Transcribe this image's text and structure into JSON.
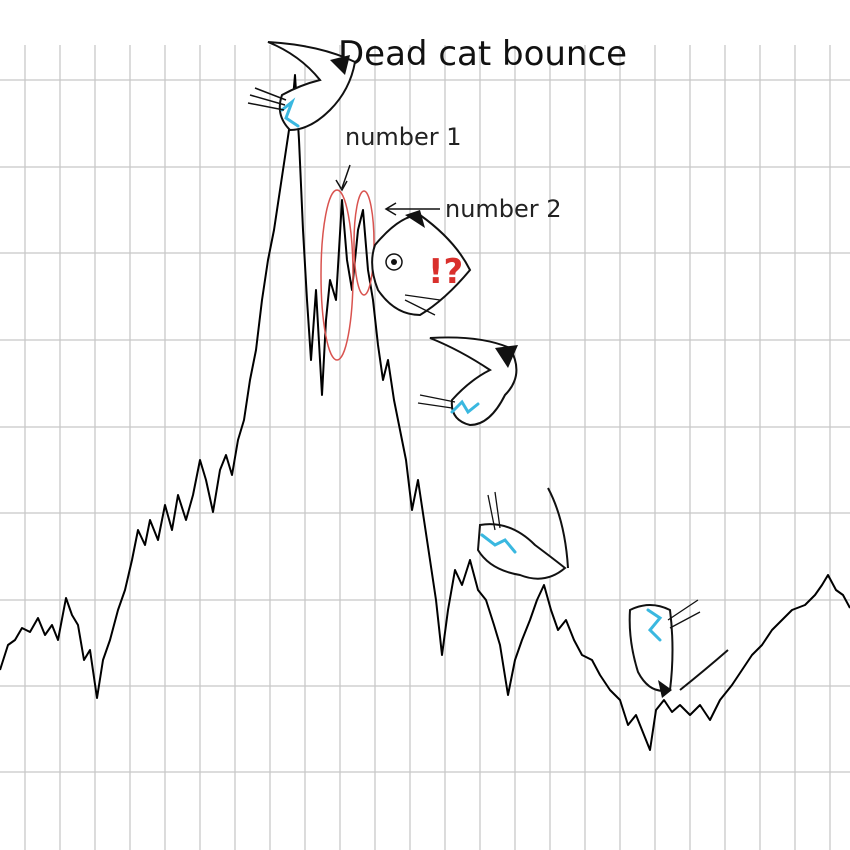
{
  "title": "Dead cat bounce",
  "annotations": {
    "first": "number 1",
    "second": "number 2",
    "exclaim": "!?"
  }
}
